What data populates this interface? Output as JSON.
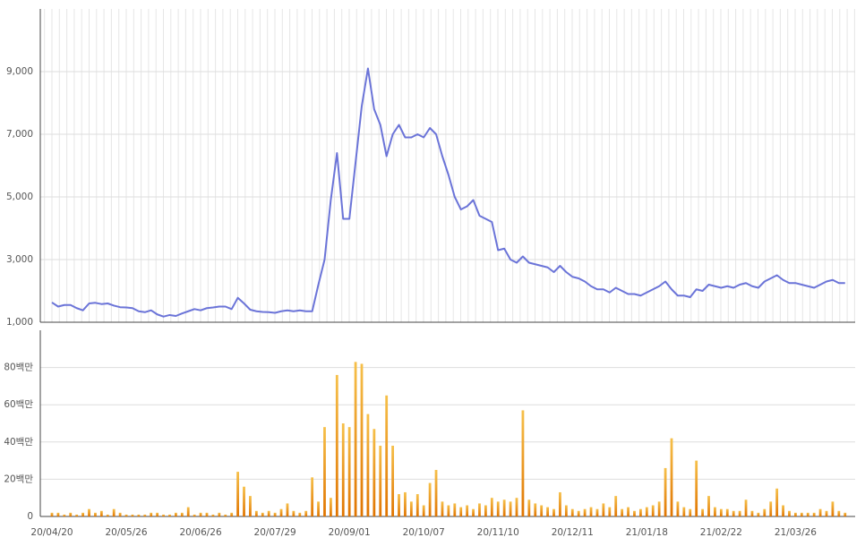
{
  "chart_data": [
    {
      "type": "line",
      "color": "#6b74d8",
      "values": [
        1630,
        1500,
        1550,
        1550,
        1450,
        1380,
        1600,
        1620,
        1580,
        1600,
        1530,
        1480,
        1470,
        1450,
        1350,
        1320,
        1380,
        1250,
        1180,
        1230,
        1200,
        1280,
        1350,
        1420,
        1380,
        1450,
        1470,
        1500,
        1500,
        1420,
        1780,
        1600,
        1400,
        1350,
        1330,
        1320,
        1300,
        1350,
        1380,
        1350,
        1380,
        1350,
        1350,
        2200,
        3000,
        4900,
        6400,
        4300,
        4300,
        6100,
        7900,
        9100,
        7800,
        7300,
        6300,
        7000,
        7300,
        6900,
        6900,
        7000,
        6900,
        7200,
        7000,
        6300,
        5700,
        5000,
        4600,
        4700,
        4900,
        4400,
        4300,
        4200,
        3300,
        3350,
        3000,
        2900,
        3100,
        2900,
        2850,
        2800,
        2750,
        2600,
        2800,
        2600,
        2450,
        2400,
        2300,
        2150,
        2050,
        2050,
        1950,
        2100,
        2000,
        1900,
        1900,
        1850,
        1950,
        2050,
        2150,
        2300,
        2050,
        1850,
        1850,
        1800,
        2050,
        2000,
        2200,
        2150,
        2100,
        2150,
        2100,
        2200,
        2250,
        2150,
        2100,
        2300,
        2400,
        2500,
        2350,
        2250,
        2250,
        2200,
        2150,
        2100,
        2200,
        2300,
        2350,
        2250,
        2250
      ],
      "ylim": [
        1000,
        11000
      ],
      "yticks": [
        {
          "value": 1000,
          "label": "1,000"
        },
        {
          "value": 3000,
          "label": "3,000"
        },
        {
          "value": 5000,
          "label": "5,000"
        },
        {
          "value": 7000,
          "label": "7,000"
        },
        {
          "value": 9000,
          "label": "9,000"
        }
      ],
      "grid": true
    },
    {
      "type": "bar",
      "color": "#ee9a2a",
      "categories": [
        "20/04/20",
        null,
        null,
        null,
        null,
        null,
        null,
        null,
        null,
        null,
        null,
        null,
        "20/05/26",
        null,
        null,
        null,
        null,
        null,
        null,
        null,
        null,
        null,
        null,
        null,
        "20/06/26",
        null,
        null,
        null,
        null,
        null,
        null,
        null,
        null,
        null,
        null,
        null,
        "20/07/29",
        null,
        null,
        null,
        null,
        null,
        null,
        null,
        null,
        null,
        null,
        null,
        "20/09/01",
        null,
        null,
        null,
        null,
        null,
        null,
        null,
        null,
        null,
        null,
        null,
        "20/10/07",
        null,
        null,
        null,
        null,
        null,
        null,
        null,
        null,
        null,
        null,
        null,
        "20/11/10",
        null,
        null,
        null,
        null,
        null,
        null,
        null,
        null,
        null,
        null,
        null,
        "20/12/11",
        null,
        null,
        null,
        null,
        null,
        null,
        null,
        null,
        null,
        null,
        null,
        "21/01/18",
        null,
        null,
        null,
        null,
        null,
        null,
        null,
        null,
        null,
        null,
        null,
        "21/02/22",
        null,
        null,
        null,
        null,
        null,
        null,
        null,
        null,
        null,
        null,
        null,
        "21/03/26",
        null,
        null,
        null,
        null,
        null,
        null,
        null,
        null
      ],
      "values": [
        2,
        2,
        1,
        2,
        1,
        2,
        4,
        2,
        3,
        1,
        4,
        2,
        1,
        1,
        1,
        1,
        2,
        2,
        1,
        1,
        2,
        2,
        5,
        1,
        2,
        2,
        1,
        2,
        1,
        2,
        24,
        16,
        11,
        3,
        2,
        3,
        2,
        4,
        7,
        3,
        2,
        3,
        21,
        8,
        48,
        10,
        76,
        50,
        48,
        83,
        82,
        55,
        47,
        38,
        65,
        38,
        12,
        13,
        8,
        12,
        6,
        18,
        25,
        8,
        6,
        7,
        5,
        6,
        4,
        7,
        6,
        10,
        8,
        9,
        8,
        10,
        57,
        9,
        7,
        6,
        5,
        4,
        13,
        6,
        4,
        3,
        4,
        5,
        4,
        7,
        5,
        11,
        4,
        5,
        3,
        4,
        5,
        6,
        8,
        26,
        42,
        8,
        5,
        4,
        30,
        4,
        11,
        5,
        4,
        4,
        3,
        3,
        9,
        3,
        2,
        4,
        8,
        15,
        6,
        3,
        2,
        2,
        2,
        2,
        4,
        3,
        8,
        3,
        2
      ],
      "ylim": [
        0,
        100
      ],
      "yticks": [
        0,
        {
          "value": 20,
          "label": "20백만"
        },
        {
          "value": 40,
          "label": "40백만"
        },
        {
          "value": 60,
          "label": "60백만"
        },
        {
          "value": 80,
          "label": "80백만"
        }
      ],
      "grid": true
    }
  ]
}
